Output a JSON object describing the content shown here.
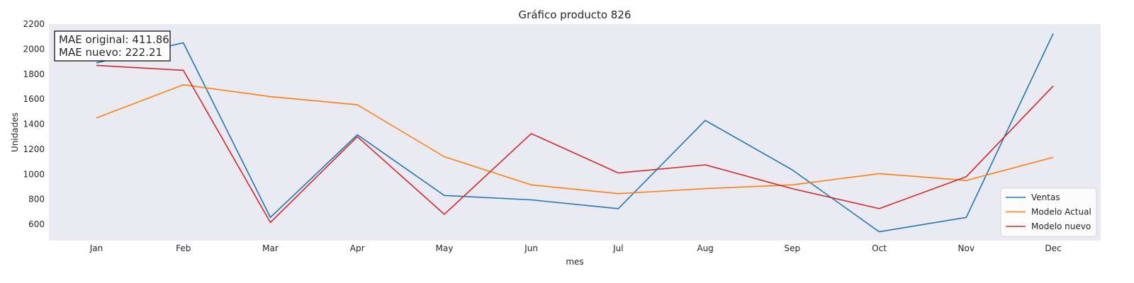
{
  "chart_data": {
    "type": "line",
    "title": "Gráfico producto 826",
    "xlabel": "mes",
    "ylabel": "Unidades",
    "categories": [
      "Jan",
      "Feb",
      "Mar",
      "Apr",
      "May",
      "Jun",
      "Jul",
      "Aug",
      "Sep",
      "Oct",
      "Nov",
      "Dec"
    ],
    "ylim": [
      470,
      2200
    ],
    "yticks": [
      600,
      800,
      1000,
      1200,
      1400,
      1600,
      1800,
      2000,
      2200
    ],
    "grid": false,
    "legend_position": "bottom-right",
    "series": [
      {
        "name": "Ventas",
        "color": "#1f77b4",
        "values": [
          1890,
          2050,
          655,
          1315,
          830,
          795,
          725,
          1430,
          1035,
          540,
          655,
          2125
        ]
      },
      {
        "name": "Modelo Actual",
        "color": "#ff7f0e",
        "values": [
          1450,
          1715,
          1620,
          1555,
          1140,
          915,
          845,
          885,
          915,
          1005,
          950,
          1135
        ]
      },
      {
        "name": "Modelo nuevo",
        "color": "#d62728",
        "values": [
          1870,
          1830,
          615,
          1300,
          680,
          1325,
          1010,
          1075,
          885,
          725,
          980,
          1705
        ]
      }
    ],
    "annotation": {
      "lines": [
        "MAE original: 411.86",
        "MAE nuevo: 222.21"
      ]
    }
  }
}
